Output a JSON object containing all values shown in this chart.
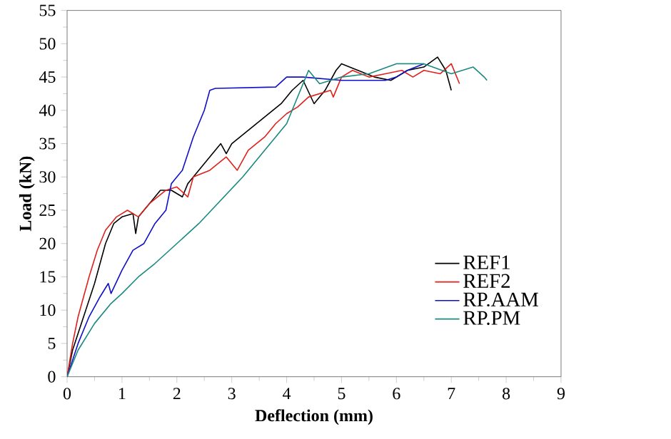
{
  "chart_data": {
    "type": "line",
    "xlabel": "Deflection (mm)",
    "ylabel": "Load (kN)",
    "xlim": [
      0,
      9
    ],
    "ylim": [
      0,
      55
    ],
    "xticks": [
      0,
      1,
      2,
      3,
      4,
      5,
      6,
      7,
      8,
      9
    ],
    "yticks": [
      0,
      5,
      10,
      15,
      20,
      25,
      30,
      35,
      40,
      45,
      50,
      55
    ],
    "legend": "bottom right",
    "grid": false,
    "marker": "none",
    "line_style": "solid",
    "series": [
      {
        "name": "REF1",
        "color": "#000000",
        "x": [
          0,
          0.1,
          0.3,
          0.5,
          0.7,
          0.85,
          1.0,
          1.2,
          1.25,
          1.3,
          1.5,
          1.7,
          1.9,
          2.1,
          2.2,
          2.5,
          2.8,
          2.9,
          3.0,
          3.3,
          3.6,
          3.9,
          4.1,
          4.3,
          4.5,
          4.7,
          4.9,
          5.0,
          5.3,
          5.6,
          5.9,
          6.2,
          6.5,
          6.75,
          6.9,
          7.0
        ],
        "values": [
          0,
          4,
          9,
          14,
          20,
          23,
          24,
          24.5,
          21.5,
          24,
          26,
          28,
          28,
          27,
          29,
          32,
          35,
          33.5,
          35,
          37,
          39,
          41,
          43,
          44.5,
          41,
          43,
          46,
          47,
          46,
          45,
          44.5,
          46,
          46.5,
          48,
          46,
          43
        ]
      },
      {
        "name": "REF2",
        "color": "#e0201c",
        "x": [
          0,
          0.1,
          0.2,
          0.4,
          0.55,
          0.7,
          0.9,
          1.1,
          1.3,
          1.5,
          1.8,
          2.0,
          2.2,
          2.3,
          2.6,
          2.9,
          3.1,
          3.3,
          3.6,
          3.8,
          4.0,
          4.2,
          4.4,
          4.6,
          4.8,
          4.85,
          5.0,
          5.2,
          5.5,
          5.8,
          6.1,
          6.3,
          6.5,
          6.8,
          7.0,
          7.15
        ],
        "values": [
          0,
          5,
          9,
          15,
          19,
          22,
          24,
          25,
          24,
          26,
          28,
          28.5,
          27,
          30,
          31,
          33,
          31,
          34,
          36,
          38,
          39.5,
          40.5,
          42,
          42.5,
          43,
          42,
          45,
          46,
          45,
          45.5,
          46,
          45,
          46,
          45.5,
          47,
          44
        ]
      },
      {
        "name": "RP.AAM",
        "color": "#1010c8",
        "x": [
          0,
          0.2,
          0.4,
          0.6,
          0.75,
          0.8,
          1.0,
          1.2,
          1.4,
          1.6,
          1.8,
          1.85,
          1.9,
          2.1,
          2.3,
          2.4,
          2.5,
          2.6,
          2.7,
          3.8,
          4.0,
          4.3,
          5.0,
          5.8,
          6.0,
          6.2,
          6.5
        ],
        "values": [
          0,
          5,
          9,
          12,
          14,
          12.5,
          16,
          19,
          20,
          23,
          25,
          27,
          29,
          31,
          36,
          38,
          40,
          43,
          43.3,
          43.5,
          45,
          45,
          44.5,
          44.5,
          45,
          46,
          47
        ]
      },
      {
        "name": "RP.PM",
        "color": "#1a8a80",
        "x": [
          0,
          0.2,
          0.5,
          0.8,
          1.0,
          1.3,
          1.6,
          2.0,
          2.4,
          2.8,
          3.2,
          3.6,
          4.0,
          4.2,
          4.4,
          4.6,
          4.8,
          5.0,
          5.5,
          6.0,
          6.5,
          7.0,
          7.4,
          7.6,
          7.65
        ],
        "values": [
          0,
          4,
          8,
          11,
          12.5,
          15,
          17,
          20,
          23,
          26.5,
          30,
          34,
          38,
          42,
          46,
          44,
          44.5,
          45,
          45.5,
          47,
          47,
          45.5,
          46.5,
          45,
          44.5
        ]
      }
    ]
  }
}
